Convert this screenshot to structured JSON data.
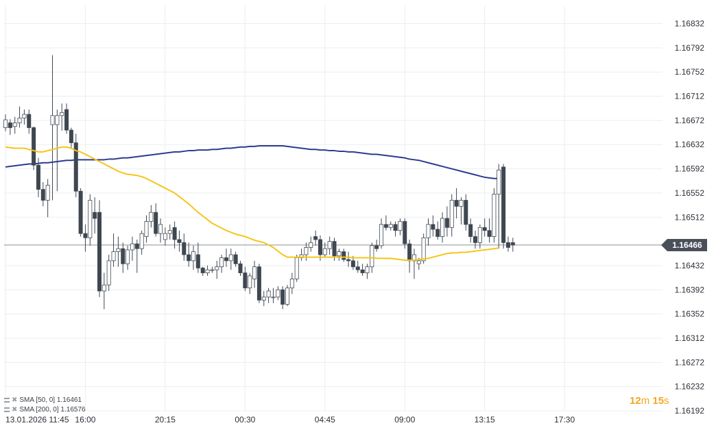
{
  "chart_data": {
    "type": "candlestick",
    "instrument_price_current": "1.16466",
    "y_ticks": [
      "1.16832",
      "1.16792",
      "1.16752",
      "1.16712",
      "1.16672",
      "1.16632",
      "1.16592",
      "1.16552",
      "1.16512",
      "1.16432",
      "1.16392",
      "1.16352",
      "1.16312",
      "1.16272",
      "1.16232",
      "1.16192"
    ],
    "y_range": [
      1.16192,
      1.16862
    ],
    "x_ticks": [
      {
        "label": "13.01.2026  11:45",
        "index": 0
      },
      {
        "label": "16:00",
        "index": 17
      },
      {
        "label": "20:15",
        "index": 34
      },
      {
        "label": "00:30",
        "index": 51
      },
      {
        "label": "04:45",
        "index": 68
      },
      {
        "label": "09:00",
        "index": 85
      },
      {
        "label": "13:15",
        "index": 102
      },
      {
        "label": "17:30",
        "index": 119
      }
    ],
    "grid": true,
    "candles": [
      [
        1.1666,
        1.16682,
        1.16654,
        1.16673
      ],
      [
        1.16668,
        1.16674,
        1.16648,
        1.1666
      ],
      [
        1.16662,
        1.16678,
        1.1665,
        1.16668
      ],
      [
        1.16668,
        1.16695,
        1.1666,
        1.16676
      ],
      [
        1.16676,
        1.1669,
        1.16665,
        1.16682
      ],
      [
        1.16682,
        1.1669,
        1.1665,
        1.1666
      ],
      [
        1.1666,
        1.16662,
        1.1659,
        1.16598
      ],
      [
        1.16598,
        1.1661,
        1.16545,
        1.16558
      ],
      [
        1.16558,
        1.1657,
        1.1653,
        1.1654
      ],
      [
        1.1654,
        1.16575,
        1.16512,
        1.16565
      ],
      [
        1.16665,
        1.1678,
        1.1654,
        1.1668
      ],
      [
        1.16665,
        1.1669,
        1.16555,
        1.1668
      ],
      [
        1.1668,
        1.167,
        1.16655,
        1.16685
      ],
      [
        1.1669,
        1.167,
        1.1665,
        1.16656
      ],
      [
        1.16656,
        1.1666,
        1.16625,
        1.16635
      ],
      [
        1.16635,
        1.1665,
        1.16545,
        1.16555
      ],
      [
        1.16555,
        1.1656,
        1.1648,
        1.16485
      ],
      [
        1.16485,
        1.165,
        1.16455,
        1.16478
      ],
      [
        1.16478,
        1.1655,
        1.16465,
        1.1654
      ],
      [
        1.1652,
        1.16545,
        1.16485,
        1.1651
      ],
      [
        1.1652,
        1.1654,
        1.1638,
        1.1639
      ],
      [
        1.1639,
        1.1642,
        1.1636,
        1.164
      ],
      [
        1.164,
        1.1645,
        1.1639,
        1.1644
      ],
      [
        1.1644,
        1.16485,
        1.1643,
        1.16455
      ],
      [
        1.16455,
        1.1648,
        1.1643,
        1.1646
      ],
      [
        1.1646,
        1.1647,
        1.1642,
        1.16435
      ],
      [
        1.16435,
        1.16465,
        1.16425,
        1.16458
      ],
      [
        1.16458,
        1.1648,
        1.1644,
        1.16468
      ],
      [
        1.16468,
        1.16475,
        1.1642,
        1.1646
      ],
      [
        1.1646,
        1.1649,
        1.1645,
        1.16485
      ],
      [
        1.1648,
        1.16515,
        1.1647,
        1.16505
      ],
      [
        1.16505,
        1.16532,
        1.16495,
        1.1652
      ],
      [
        1.1652,
        1.16535,
        1.1648,
        1.16485
      ],
      [
        1.16485,
        1.1651,
        1.1647,
        1.165
      ],
      [
        1.16475,
        1.16495,
        1.16465,
        1.16485
      ],
      [
        1.16485,
        1.165,
        1.16475,
        1.1649
      ],
      [
        1.16495,
        1.16505,
        1.1646,
        1.16475
      ],
      [
        1.16475,
        1.1649,
        1.16455,
        1.1647
      ],
      [
        1.1647,
        1.16485,
        1.1644,
        1.1645
      ],
      [
        1.1645,
        1.1647,
        1.1643,
        1.1644
      ],
      [
        1.1644,
        1.16465,
        1.16425,
        1.16455
      ],
      [
        1.1645,
        1.1647,
        1.1642,
        1.16428
      ],
      [
        1.16428,
        1.1643,
        1.16415,
        1.1642
      ],
      [
        1.1642,
        1.16432,
        1.16415,
        1.16425
      ],
      [
        1.16425,
        1.1643,
        1.1642,
        1.16425
      ],
      [
        1.16425,
        1.1644,
        1.1641,
        1.1643
      ],
      [
        1.1643,
        1.1645,
        1.1642,
        1.16445
      ],
      [
        1.16445,
        1.1646,
        1.1643,
        1.1644
      ],
      [
        1.1644,
        1.1646,
        1.16425,
        1.1645
      ],
      [
        1.1645,
        1.16455,
        1.1643,
        1.16435
      ],
      [
        1.16435,
        1.1644,
        1.16415,
        1.1642
      ],
      [
        1.1642,
        1.1643,
        1.1639,
        1.16395
      ],
      [
        1.16395,
        1.1642,
        1.16385,
        1.16415
      ],
      [
        1.1641,
        1.1644,
        1.16395,
        1.1643
      ],
      [
        1.1643,
        1.16435,
        1.1637,
        1.16375
      ],
      [
        1.16375,
        1.1639,
        1.16365,
        1.1638
      ],
      [
        1.1638,
        1.16395,
        1.1637,
        1.1639
      ],
      [
        1.1638,
        1.16395,
        1.1637,
        1.1638
      ],
      [
        1.1638,
        1.16398,
        1.16375,
        1.16392
      ],
      [
        1.16392,
        1.16398,
        1.1636,
        1.16368
      ],
      [
        1.16368,
        1.164,
        1.16365,
        1.16395
      ],
      [
        1.16395,
        1.1642,
        1.16385,
        1.1641
      ],
      [
        1.1641,
        1.1645,
        1.16405,
        1.16445
      ],
      [
        1.16445,
        1.1646,
        1.1644,
        1.1645
      ],
      [
        1.1645,
        1.1647,
        1.1644,
        1.16462
      ],
      [
        1.16462,
        1.1648,
        1.16455,
        1.1647
      ],
      [
        1.1648,
        1.1649,
        1.16465,
        1.16475
      ],
      [
        1.16475,
        1.16482,
        1.1644,
        1.1645
      ],
      [
        1.1645,
        1.1647,
        1.16445,
        1.1646
      ],
      [
        1.1646,
        1.1648,
        1.1645,
        1.16472
      ],
      [
        1.16472,
        1.16478,
        1.1644,
        1.16448
      ],
      [
        1.16448,
        1.1646,
        1.1644,
        1.16455
      ],
      [
        1.16455,
        1.1646,
        1.16438,
        1.16442
      ],
      [
        1.16442,
        1.16455,
        1.1643,
        1.1644
      ],
      [
        1.1644,
        1.16448,
        1.16425,
        1.1643
      ],
      [
        1.1643,
        1.1644,
        1.1642,
        1.16425
      ],
      [
        1.16425,
        1.16435,
        1.16415,
        1.1642
      ],
      [
        1.1642,
        1.16435,
        1.1641,
        1.1643
      ],
      [
        1.1643,
        1.1647,
        1.1642,
        1.16465
      ],
      [
        1.16465,
        1.16475,
        1.16455,
        1.1646
      ],
      [
        1.16465,
        1.1651,
        1.1646,
        1.165
      ],
      [
        1.165,
        1.16515,
        1.1649,
        1.16495
      ],
      [
        1.16495,
        1.16505,
        1.1649,
        1.165
      ],
      [
        1.165,
        1.16505,
        1.1648,
        1.1649
      ],
      [
        1.1649,
        1.1651,
        1.16482,
        1.16505
      ],
      [
        1.16505,
        1.1651,
        1.1646,
        1.16468
      ],
      [
        1.16468,
        1.16475,
        1.1642,
        1.1644
      ],
      [
        1.1644,
        1.1646,
        1.1641,
        1.1645
      ],
      [
        1.16435,
        1.16445,
        1.16425,
        1.1644
      ],
      [
        1.1644,
        1.16485,
        1.16435,
        1.16478
      ],
      [
        1.16478,
        1.1651,
        1.16465,
        1.165
      ],
      [
        1.165,
        1.16515,
        1.1648,
        1.16492
      ],
      [
        1.16492,
        1.16505,
        1.16475,
        1.1648
      ],
      [
        1.1648,
        1.1652,
        1.1647,
        1.1651
      ],
      [
        1.1651,
        1.1653,
        1.1648,
        1.16495
      ],
      [
        1.16495,
        1.1655,
        1.1648,
        1.1654
      ],
      [
        1.1654,
        1.1656,
        1.1651,
        1.1653
      ],
      [
        1.1653,
        1.16545,
        1.165,
        1.1654
      ],
      [
        1.1654,
        1.1655,
        1.1649,
        1.165
      ],
      [
        1.165,
        1.1651,
        1.1647,
        1.1648
      ],
      [
        1.1648,
        1.1649,
        1.1646,
        1.1647
      ],
      [
        1.1647,
        1.165,
        1.1646,
        1.16495
      ],
      [
        1.16495,
        1.1651,
        1.1648,
        1.1649
      ],
      [
        1.1649,
        1.1651,
        1.1647,
        1.1648
      ],
      [
        1.1648,
        1.1656,
        1.1647,
        1.1655
      ],
      [
        1.1655,
        1.166,
        1.1646,
        1.1659
      ],
      [
        1.16595,
        1.166,
        1.1646,
        1.1647
      ],
      [
        1.1647,
        1.1648,
        1.16455,
        1.16462
      ],
      [
        1.1647,
        1.16478,
        1.16455,
        1.16466
      ]
    ],
    "series": [
      {
        "name": "SMA [50, 0] 1.16461",
        "color": "#f5c518",
        "values": [
          1.16628,
          1.16627,
          1.16626,
          1.16626,
          1.16626,
          1.16624,
          1.16622,
          1.1662,
          1.1662,
          1.16622,
          1.16624,
          1.16626,
          1.16628,
          1.16628,
          1.16626,
          1.16622,
          1.1662,
          1.16616,
          1.16612,
          1.16608,
          1.16604,
          1.166,
          1.16596,
          1.16592,
          1.16588,
          1.16585,
          1.16583,
          1.16582,
          1.16581,
          1.16579,
          1.16576,
          1.16572,
          1.16568,
          1.16564,
          1.1656,
          1.16556,
          1.16552,
          1.16546,
          1.1654,
          1.16534,
          1.16527,
          1.1652,
          1.16514,
          1.16508,
          1.16502,
          1.16498,
          1.16494,
          1.1649,
          1.16487,
          1.16484,
          1.16482,
          1.1648,
          1.16477,
          1.16474,
          1.16472,
          1.1647,
          1.16466,
          1.16462,
          1.16456,
          1.1645,
          1.16446,
          1.16446,
          1.16446,
          1.16446,
          1.16446,
          1.16446,
          1.16446,
          1.16446,
          1.16446,
          1.16446,
          1.16446,
          1.16446,
          1.16446,
          1.16446,
          1.16445,
          1.16445,
          1.16445,
          1.16445,
          1.16445,
          1.16444,
          1.16444,
          1.16444,
          1.16444,
          1.16443,
          1.16442,
          1.16441,
          1.16441,
          1.16441,
          1.16442,
          1.16443,
          1.16444,
          1.16446,
          1.16448,
          1.1645,
          1.16452,
          1.16453,
          1.16453,
          1.16454,
          1.16454,
          1.16455,
          1.16456,
          1.16457,
          1.16458,
          1.16459,
          1.1646,
          1.16461
        ]
      },
      {
        "name": "SMA [200, 0] 1.16576",
        "color": "#2b3a8f",
        "values": [
          1.16595,
          1.16596,
          1.16597,
          1.16598,
          1.16599,
          1.166,
          1.166,
          1.16601,
          1.16602,
          1.16602,
          1.16603,
          1.16604,
          1.16605,
          1.16606,
          1.16606,
          1.16607,
          1.16607,
          1.16607,
          1.16607,
          1.16607,
          1.16607,
          1.16607,
          1.16608,
          1.16608,
          1.16609,
          1.1661,
          1.1661,
          1.16611,
          1.16612,
          1.16613,
          1.16614,
          1.16615,
          1.16616,
          1.16617,
          1.16618,
          1.16619,
          1.1662,
          1.1662,
          1.16621,
          1.16622,
          1.16622,
          1.16623,
          1.16623,
          1.16623,
          1.16624,
          1.16624,
          1.16625,
          1.16626,
          1.16626,
          1.16627,
          1.16628,
          1.16628,
          1.16629,
          1.16629,
          1.1663,
          1.1663,
          1.1663,
          1.1663,
          1.1663,
          1.1663,
          1.16629,
          1.16628,
          1.16627,
          1.16626,
          1.16625,
          1.16624,
          1.16624,
          1.16623,
          1.16623,
          1.16622,
          1.16622,
          1.16621,
          1.16621,
          1.1662,
          1.1662,
          1.16619,
          1.16618,
          1.16617,
          1.16616,
          1.16616,
          1.16615,
          1.16614,
          1.16613,
          1.16612,
          1.16611,
          1.1661,
          1.16608,
          1.16607,
          1.16606,
          1.16604,
          1.16602,
          1.166,
          1.16598,
          1.16596,
          1.16594,
          1.16592,
          1.1659,
          1.16588,
          1.16586,
          1.16584,
          1.16582,
          1.1658,
          1.16578,
          1.16577,
          1.16576,
          1.16576
        ]
      }
    ]
  },
  "legend": {
    "sma50": "SMA [50, 0]  1.16461",
    "sma200": "SMA [200, 0]  1.16576"
  },
  "countdown": {
    "minutes": "12",
    "m_unit": "m",
    "seconds": "15",
    "s_unit": "s"
  },
  "price_tag": "1.16466",
  "colors": {
    "up": "#ffffff",
    "down": "#3f4751",
    "wick": "#3f4751",
    "grid": "#ebedf0"
  }
}
